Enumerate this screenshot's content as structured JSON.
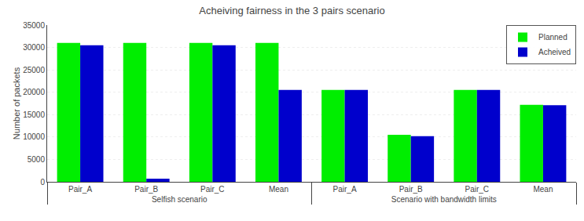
{
  "chart_data": {
    "type": "bar",
    "title": "Acheiving fairness in the 3 pairs scenario",
    "ylabel": "Number of packets",
    "categories": [
      "Pair_A",
      "Pair_B",
      "Pair_C",
      "Mean",
      "Pair_A",
      "Pair_B",
      "Pair_C",
      "Mean"
    ],
    "category_groups": [
      "Selfish scenario",
      "Selfish scenario",
      "Selfish scenario",
      "Selfish scenario",
      "Scenario with bandwidth limits",
      "Scenario with bandwidth limits",
      "Scenario with bandwidth limits",
      "Scenario with bandwidth limits"
    ],
    "series": [
      {
        "name": "Planned",
        "color": "#00ee00",
        "values": [
          31000,
          31000,
          31000,
          31000,
          20500,
          10500,
          20500,
          17200
        ]
      },
      {
        "name": "Acheived",
        "color": "#0000cc",
        "values": [
          30500,
          700,
          30500,
          20500,
          20500,
          10200,
          20500,
          17100
        ]
      }
    ],
    "ylim": [
      0,
      35000
    ],
    "yticks": [
      0,
      5000,
      10000,
      15000,
      20000,
      25000,
      30000,
      35000
    ],
    "grid": true,
    "legend": "upper right"
  }
}
